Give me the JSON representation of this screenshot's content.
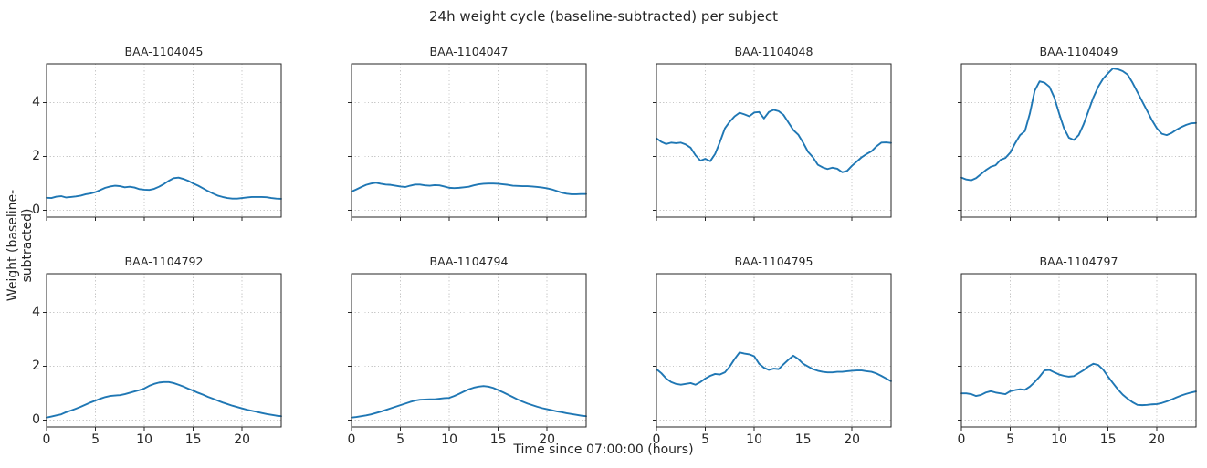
{
  "figure": {
    "suptitle": "24h weight cycle (baseline-subtracted) per subject",
    "xlabel": "Time since 07:00:00 (hours)",
    "ylabel": "Weight (baseline-subtracted)",
    "background": "#ffffff",
    "text_color": "#262626",
    "line_color": "#1f77b4",
    "grid_color": "#c8c8c8",
    "spine_color": "#262626"
  },
  "chart_data": {
    "type": "line",
    "layout": "2x4 grid of small multiples, shared x and y axes, dotted grid on",
    "title": "24h weight cycle (baseline-subtracted) per subject",
    "xlabel": "Time since 07:00:00 (hours)",
    "ylabel": "Weight (baseline-subtracted)",
    "xlim": [
      0,
      24
    ],
    "ylim": [
      -0.25,
      5.45
    ],
    "xticks": [
      0,
      5,
      10,
      15,
      20
    ],
    "yticks": [
      0,
      2,
      4
    ],
    "grid": true,
    "grid_style": "dotted",
    "line_color": "#1f77b4",
    "x": [
      0,
      0.5,
      1,
      1.5,
      2,
      2.5,
      3,
      3.5,
      4,
      4.5,
      5,
      5.5,
      6,
      6.5,
      7,
      7.5,
      8,
      8.5,
      9,
      9.5,
      10,
      10.5,
      11,
      11.5,
      12,
      12.5,
      13,
      13.5,
      14,
      14.5,
      15,
      15.5,
      16,
      16.5,
      17,
      17.5,
      18,
      18.5,
      19,
      19.5,
      20,
      20.5,
      21,
      21.5,
      22,
      22.5,
      23,
      23.5,
      24
    ],
    "subplots": [
      {
        "subject": "BAA-1104045",
        "values": [
          0.47,
          0.46,
          0.51,
          0.53,
          0.48,
          0.5,
          0.52,
          0.55,
          0.6,
          0.63,
          0.68,
          0.76,
          0.84,
          0.89,
          0.92,
          0.9,
          0.86,
          0.88,
          0.85,
          0.79,
          0.77,
          0.76,
          0.8,
          0.88,
          0.98,
          1.1,
          1.2,
          1.22,
          1.17,
          1.1,
          1.0,
          0.92,
          0.82,
          0.72,
          0.63,
          0.55,
          0.5,
          0.46,
          0.44,
          0.44,
          0.46,
          0.48,
          0.5,
          0.5,
          0.5,
          0.49,
          0.46,
          0.44,
          0.43
        ]
      },
      {
        "subject": "BAA-1104047",
        "values": [
          0.7,
          0.78,
          0.87,
          0.95,
          1.0,
          1.03,
          0.99,
          0.96,
          0.95,
          0.92,
          0.89,
          0.87,
          0.92,
          0.96,
          0.96,
          0.93,
          0.92,
          0.94,
          0.93,
          0.89,
          0.84,
          0.83,
          0.84,
          0.86,
          0.88,
          0.93,
          0.97,
          0.99,
          1.0,
          1.0,
          0.99,
          0.97,
          0.95,
          0.92,
          0.91,
          0.9,
          0.9,
          0.89,
          0.87,
          0.85,
          0.82,
          0.78,
          0.72,
          0.66,
          0.62,
          0.6,
          0.6,
          0.61,
          0.61
        ]
      },
      {
        "subject": "BAA-1104048",
        "values": [
          2.68,
          2.55,
          2.47,
          2.52,
          2.5,
          2.52,
          2.45,
          2.33,
          2.05,
          1.85,
          1.92,
          1.83,
          2.1,
          2.55,
          3.05,
          3.3,
          3.5,
          3.63,
          3.57,
          3.5,
          3.64,
          3.66,
          3.42,
          3.66,
          3.74,
          3.69,
          3.55,
          3.27,
          2.99,
          2.82,
          2.52,
          2.18,
          1.98,
          1.7,
          1.6,
          1.54,
          1.59,
          1.55,
          1.42,
          1.47,
          1.66,
          1.82,
          1.98,
          2.1,
          2.2,
          2.38,
          2.52,
          2.53,
          2.51
        ]
      },
      {
        "subject": "BAA-1104049",
        "values": [
          1.22,
          1.15,
          1.12,
          1.2,
          1.35,
          1.5,
          1.62,
          1.68,
          1.88,
          1.95,
          2.15,
          2.5,
          2.8,
          2.95,
          3.6,
          4.45,
          4.8,
          4.75,
          4.6,
          4.2,
          3.6,
          3.05,
          2.7,
          2.62,
          2.8,
          3.2,
          3.7,
          4.2,
          4.6,
          4.9,
          5.1,
          5.28,
          5.25,
          5.18,
          5.05,
          4.75,
          4.4,
          4.05,
          3.7,
          3.35,
          3.05,
          2.85,
          2.8,
          2.88,
          3.0,
          3.1,
          3.18,
          3.24,
          3.25
        ]
      },
      {
        "subject": "BAA-1104792",
        "values": [
          0.1,
          0.14,
          0.18,
          0.22,
          0.3,
          0.36,
          0.43,
          0.5,
          0.58,
          0.66,
          0.73,
          0.8,
          0.86,
          0.9,
          0.92,
          0.93,
          0.97,
          1.02,
          1.07,
          1.12,
          1.18,
          1.28,
          1.35,
          1.4,
          1.42,
          1.42,
          1.38,
          1.32,
          1.25,
          1.17,
          1.1,
          1.02,
          0.95,
          0.87,
          0.8,
          0.73,
          0.66,
          0.6,
          0.54,
          0.49,
          0.44,
          0.39,
          0.35,
          0.31,
          0.27,
          0.23,
          0.2,
          0.17,
          0.15
        ]
      },
      {
        "subject": "BAA-1104794",
        "values": [
          0.1,
          0.12,
          0.15,
          0.18,
          0.22,
          0.27,
          0.32,
          0.38,
          0.44,
          0.5,
          0.56,
          0.62,
          0.68,
          0.73,
          0.76,
          0.77,
          0.78,
          0.78,
          0.8,
          0.82,
          0.83,
          0.9,
          0.98,
          1.07,
          1.15,
          1.21,
          1.25,
          1.27,
          1.25,
          1.2,
          1.12,
          1.04,
          0.95,
          0.86,
          0.77,
          0.69,
          0.62,
          0.56,
          0.5,
          0.45,
          0.41,
          0.37,
          0.33,
          0.3,
          0.26,
          0.23,
          0.2,
          0.17,
          0.15
        ]
      },
      {
        "subject": "BAA-1104795",
        "values": [
          1.9,
          1.75,
          1.55,
          1.42,
          1.35,
          1.32,
          1.35,
          1.38,
          1.32,
          1.42,
          1.55,
          1.65,
          1.72,
          1.7,
          1.78,
          2.0,
          2.28,
          2.52,
          2.48,
          2.45,
          2.38,
          2.1,
          1.95,
          1.87,
          1.92,
          1.9,
          2.08,
          2.25,
          2.4,
          2.28,
          2.1,
          2.0,
          1.9,
          1.84,
          1.8,
          1.78,
          1.78,
          1.8,
          1.8,
          1.82,
          1.84,
          1.85,
          1.85,
          1.82,
          1.8,
          1.74,
          1.65,
          1.55,
          1.45
        ]
      },
      {
        "subject": "BAA-1104797",
        "values": [
          1.0,
          1.0,
          0.97,
          0.9,
          0.94,
          1.03,
          1.08,
          1.03,
          1.0,
          0.97,
          1.08,
          1.12,
          1.15,
          1.13,
          1.25,
          1.42,
          1.62,
          1.85,
          1.87,
          1.78,
          1.7,
          1.65,
          1.62,
          1.64,
          1.75,
          1.86,
          2.0,
          2.1,
          2.05,
          1.88,
          1.62,
          1.38,
          1.15,
          0.95,
          0.8,
          0.67,
          0.57,
          0.56,
          0.57,
          0.59,
          0.6,
          0.64,
          0.7,
          0.77,
          0.85,
          0.92,
          0.98,
          1.03,
          1.07
        ]
      }
    ]
  }
}
